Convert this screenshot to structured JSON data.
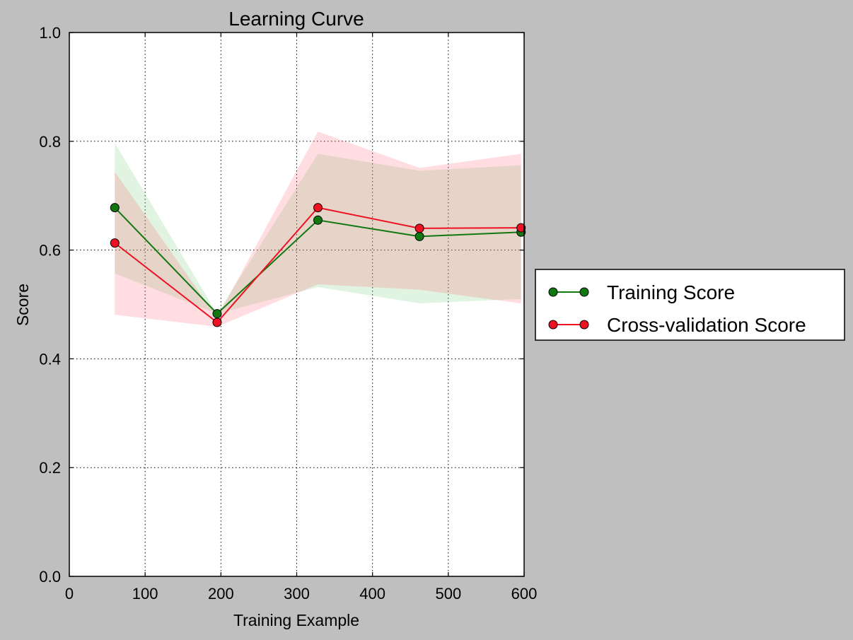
{
  "chart_data": {
    "type": "line",
    "title": "Learning Curve",
    "xlabel": "Training Example",
    "ylabel": "Score",
    "xlim": [
      0,
      600
    ],
    "ylim": [
      0.0,
      1.0
    ],
    "xticks": [
      0,
      100,
      200,
      300,
      400,
      500,
      600
    ],
    "xtick_labels": [
      "0",
      "100",
      "200",
      "300",
      "400",
      "500",
      "600"
    ],
    "yticks": [
      0.0,
      0.2,
      0.4,
      0.6,
      0.8,
      1.0
    ],
    "ytick_labels": [
      "0.0",
      "0.2",
      "0.4",
      "0.6",
      "0.8",
      "1.0"
    ],
    "grid": true,
    "legend_position": "outside-right",
    "x": [
      60,
      195,
      328,
      462,
      596
    ],
    "series": [
      {
        "name": "Training Score",
        "color": "#117711",
        "values": [
          0.678,
          0.483,
          0.655,
          0.625,
          0.633
        ],
        "band_lower": [
          0.557,
          0.483,
          0.532,
          0.502,
          0.51
        ],
        "band_upper": [
          0.797,
          0.483,
          0.777,
          0.746,
          0.756
        ],
        "band_color": "#77cc77"
      },
      {
        "name": "Cross-validation Score",
        "color": "#ee1122",
        "values": [
          0.613,
          0.467,
          0.678,
          0.64,
          0.641
        ],
        "band_lower": [
          0.481,
          0.459,
          0.537,
          0.527,
          0.502
        ],
        "band_upper": [
          0.744,
          0.476,
          0.818,
          0.751,
          0.777
        ],
        "band_color": "#ff6677"
      }
    ]
  }
}
